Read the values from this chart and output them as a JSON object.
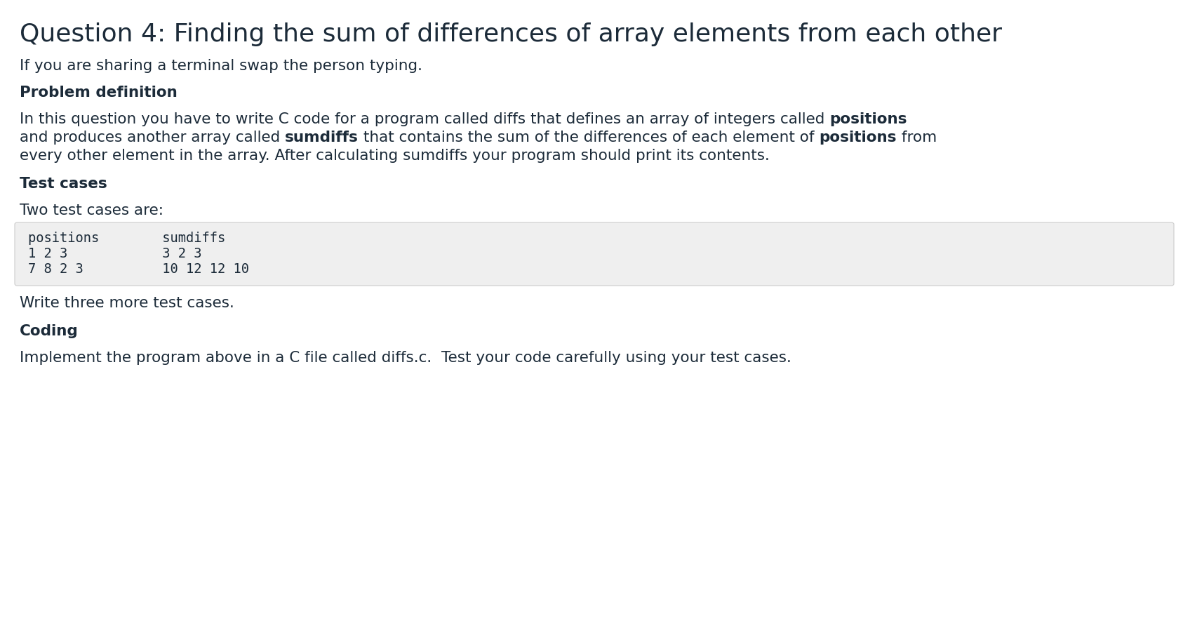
{
  "title": "Question 4: Finding the sum of differences of array elements from each other",
  "subtitle": "If you are sharing a terminal swap the person typing.",
  "section1_header": "Problem definition",
  "line1_normal": "In this question you have to write C code for a program called diffs that defines an array of integers called ",
  "line1_bold": "positions",
  "line2_start": "and produces another array called ",
  "line2_bold1": "sumdiffs",
  "line2_mid": " that contains the sum of the differences of each element of ",
  "line2_bold2": "positions",
  "line2_end": " from",
  "line3": "every other element in the array. After calculating sumdiffs your program should print its contents.",
  "section2_header": "Test cases",
  "section2_body": "Two test cases are:",
  "code_line1": "positions        sumdiffs",
  "code_line2": "1 2 3            3 2 3",
  "code_line3": "7 8 2 3          10 12 12 10",
  "section3_body": "Write three more test cases.",
  "section4_header": "Coding",
  "section4_body": "Implement the program above in a C file called diffs.c.  Test your code carefully using your test cases.",
  "bg_color": "#ffffff",
  "text_color": "#1c2b39",
  "code_bg": "#efefef",
  "code_border": "#cccccc",
  "title_fontsize": 26,
  "body_fontsize": 15.5,
  "header_fontsize": 15.5,
  "code_fontsize": 13.5,
  "fig_width": 16.86,
  "fig_height": 9.02,
  "dpi": 100
}
